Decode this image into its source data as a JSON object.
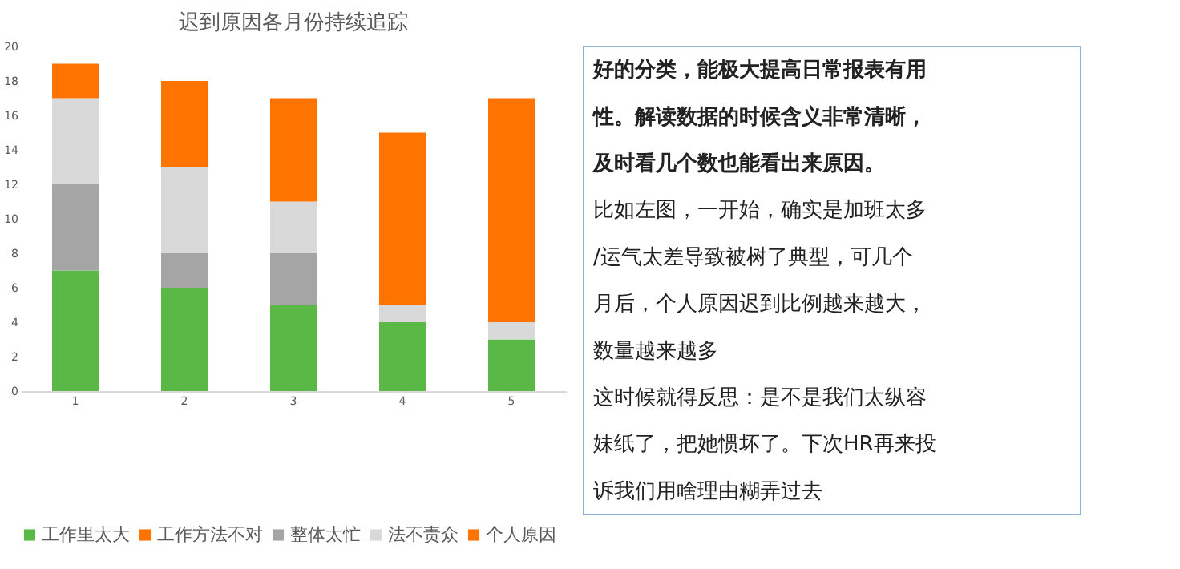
{
  "chart_data": [
    {
      "type": "bar",
      "stacked": true,
      "title": "迟到原因各月份持续追踪",
      "categories": [
        "1",
        "2",
        "3",
        "4",
        "5"
      ],
      "series": [
        {
          "name": "工作里太大",
          "color": "#5ab946",
          "values": [
            7,
            6,
            5,
            4,
            3
          ]
        },
        {
          "name": "工作方法不对",
          "color": "#ff7300",
          "values": [
            0,
            0,
            0,
            0,
            0
          ]
        },
        {
          "name": "整体太忙",
          "color": "#a5a5a5",
          "values": [
            5,
            2,
            3,
            0,
            0
          ]
        },
        {
          "name": "法不责众",
          "color": "#d9d9d9",
          "values": [
            5,
            5,
            3,
            1,
            1
          ]
        },
        {
          "name": "个人原因",
          "color": "#ff7300",
          "values": [
            2,
            5,
            6,
            10,
            13
          ]
        }
      ],
      "ylim": [
        0,
        20
      ],
      "yticks": [
        0,
        2,
        4,
        6,
        8,
        10,
        12,
        14,
        16,
        18,
        20
      ],
      "grid": false,
      "legend": "bottom"
    },
    {
      "type": "other",
      "annotations": [
        "好的分类，能极大提高日常报表有用",
        "性。解读数据的时候含义非常清晰，",
        "及时看几个数也能看出来原因。",
        "比如左图，一开始，确实是加班太多",
        "/运气太差导致被树了典型，可几个",
        "月后，个人原因迟到比例越来越大，",
        "数量越来越多",
        "这时候就得反思：是不是我们太纵容",
        "妹纸了，把她惯坏了。下次HR再来投",
        "诉我们用啥理由糊弄过去"
      ]
    }
  ]
}
